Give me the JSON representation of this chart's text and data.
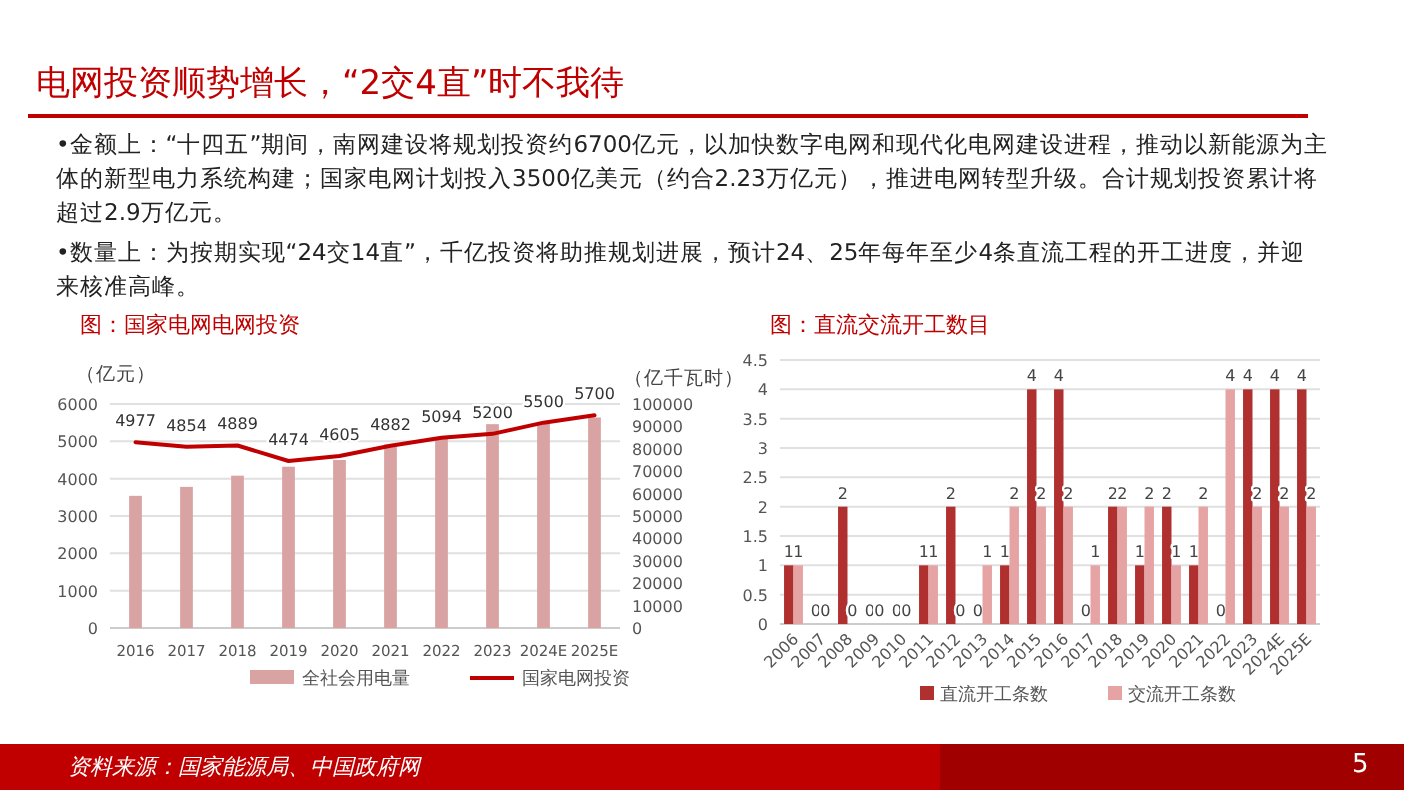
{
  "chart_data": [
    {
      "type": "other",
      "title": "电网投资顺势增长，“2交4直”时不我待",
      "annotations": [
        "•金额上：“十四五”期间，南网建设将规划投资约6700亿元，以加快数字电网和现代化电网建设进程，推动以新能源为主体的新型电力系统构建；国家电网计划投入3500亿美元（约合2.23万亿元），推进电网转型升级。合计规划投资累计将超过2.9万亿元。",
        "•数量上：为按期实现“24交14直”，千亿投资将助推规划进展，预计24、25年每年至少4条直流工程的开工进度，并迎来核准高峰。",
        "资料来源：国家能源局、中国政府网",
        "5"
      ]
    },
    {
      "type": "bar",
      "title": "图：国家电网电网投资",
      "ylabel": "（亿元）",
      "y2label": "（亿千瓦时）",
      "categories": [
        "2016",
        "2017",
        "2018",
        "2019",
        "2020",
        "2021",
        "2022",
        "2023",
        "2024E",
        "2025E"
      ],
      "series": [
        {
          "name": "全社会用电量",
          "type": "bar",
          "axis": "y2",
          "color": "#d9a3a3",
          "values": [
            59000,
            63000,
            68000,
            72000,
            75000,
            82000,
            85000,
            91000,
            92000,
            94000
          ]
        },
        {
          "name": "国家电网投资",
          "type": "line",
          "color": "#c00000",
          "values": [
            4977,
            4854,
            4889,
            4474,
            4605,
            4882,
            5094,
            5200,
            5500,
            5700
          ],
          "value_labels": [
            "4977",
            "4854",
            "4889",
            "4474",
            "4605",
            "4882",
            "5094",
            "5200",
            "5500",
            "5700"
          ]
        }
      ],
      "ylim": [
        0,
        6000
      ],
      "yticks": [
        0,
        1000,
        2000,
        3000,
        4000,
        5000,
        6000
      ],
      "y2lim": [
        0,
        100000
      ],
      "y2ticks": [
        0,
        10000,
        20000,
        30000,
        40000,
        50000,
        60000,
        70000,
        80000,
        90000,
        100000
      ],
      "grid": "y",
      "legend": "bottom"
    },
    {
      "type": "bar",
      "title": "图：直流交流开工数目",
      "categories": [
        "2006",
        "2007",
        "2008",
        "2009",
        "2010",
        "2011",
        "2012",
        "2013",
        "2014",
        "2015",
        "2016",
        "2017",
        "2018",
        "2019",
        "2020",
        "2021",
        "2022",
        "2023",
        "2024E",
        "2025E"
      ],
      "series": [
        {
          "name": "直流开工条数",
          "color": "#b03030",
          "values": [
            1,
            0,
            2,
            0,
            0,
            1,
            2,
            0,
            1,
            4,
            4,
            0,
            2,
            1,
            2,
            1,
            0,
            4,
            4,
            4
          ]
        },
        {
          "name": "交流开工条数",
          "color": "#e6a3a3",
          "values": [
            1,
            0,
            0,
            0,
            0,
            1,
            0,
            1,
            2,
            2,
            2,
            1,
            2,
            2,
            1,
            2,
            4,
            2,
            2,
            2
          ]
        }
      ],
      "ylim": [
        0,
        4.5
      ],
      "yticks": [
        0,
        0.5,
        1,
        1.5,
        2,
        2.5,
        3,
        3.5,
        4,
        4.5
      ],
      "grid": "y",
      "legend": "bottom",
      "data_labels": true
    }
  ]
}
